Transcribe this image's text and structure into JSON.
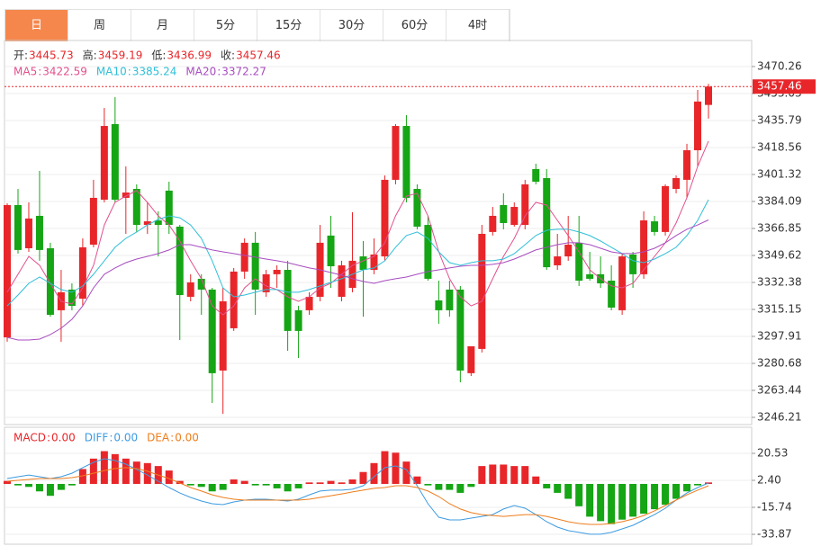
{
  "tabs": {
    "items": [
      "日",
      "周",
      "月",
      "5分",
      "15分",
      "30分",
      "60分",
      "4时"
    ],
    "active": 0
  },
  "chart_data": [
    {
      "type": "candlestick",
      "separator": ":",
      "ohlc_labels": [
        "开:",
        "高:",
        "低:",
        "收:"
      ],
      "up_color": "#e8262a",
      "down_color": "#15a515",
      "grid": true,
      "last_price_line": true,
      "ylim": [
        3241.6,
        3486.9
      ],
      "yticks": [
        3470.26,
        3453.03,
        3435.79,
        3418.56,
        3401.32,
        3384.09,
        3366.85,
        3349.62,
        3332.38,
        3315.15,
        3297.91,
        3280.68,
        3263.44,
        3246.21
      ],
      "open": [
        3297.3,
        3381.8,
        3354.2,
        3374.9,
        3354.2,
        3314.6,
        3327.8,
        3322.0,
        3356.5,
        3385.2,
        3433.5,
        3386.4,
        3392.1,
        3369.1,
        3372.0,
        3391.0,
        3368.0,
        3323.2,
        3334.7,
        3327.8,
        3276.1,
        3303.1,
        3339.3,
        3357.7,
        3326.1,
        3337.6,
        3340.4,
        3314.6,
        3314.6,
        3323.2,
        3362.3,
        3323.2,
        3328.9,
        3349.0,
        3340.4,
        3349.0,
        3397.9,
        3432.3,
        3392.1,
        3369.1,
        3320.9,
        3327.8,
        3327.8,
        3274.4,
        3289.9,
        3364.6,
        3381.8,
        3369.1,
        3369.1,
        3404.8,
        3399.0,
        3343.3,
        3349.0,
        3357.7,
        3337.6,
        3337.6,
        3333.5,
        3314.6,
        3350.2,
        3337.6,
        3371.4,
        3364.6,
        3392.1,
        3397.9,
        3416.8,
        3445.73
      ],
      "high": [
        3382.9,
        3392.1,
        3383.5,
        3403.6,
        3357.7,
        3340.4,
        3331.8,
        3360.5,
        3397.9,
        3443.8,
        3450.7,
        3406.5,
        3395.0,
        3383.5,
        3377.8,
        3396.7,
        3369.1,
        3337.6,
        3337.6,
        3328.9,
        3328.9,
        3341.6,
        3360.5,
        3364.6,
        3340.4,
        3343.3,
        3346.2,
        3317.4,
        3326.1,
        3369.1,
        3374.9,
        3346.2,
        3377.2,
        3358.8,
        3360.5,
        3400.7,
        3433.5,
        3439.2,
        3395.0,
        3374.9,
        3333.5,
        3333.5,
        3330.1,
        3291.6,
        3369.1,
        3380.6,
        3389.3,
        3383.5,
        3397.9,
        3408.2,
        3404.8,
        3363.4,
        3374.9,
        3374.9,
        3351.9,
        3349.0,
        3343.3,
        3350.8,
        3351.9,
        3377.8,
        3374.9,
        3395.0,
        3400.7,
        3420.9,
        3455.3,
        3459.19
      ],
      "low": [
        3294.5,
        3350.8,
        3351.9,
        3346.2,
        3310.5,
        3294.5,
        3314.6,
        3317.4,
        3354.8,
        3383.5,
        3383.5,
        3363.4,
        3364.6,
        3363.4,
        3349.0,
        3363.4,
        3295.6,
        3320.3,
        3311.7,
        3255.4,
        3248.5,
        3301.4,
        3334.7,
        3311.7,
        3323.2,
        3328.9,
        3288.7,
        3284.1,
        3311.7,
        3320.3,
        3328.9,
        3320.3,
        3326.1,
        3310.5,
        3337.6,
        3346.2,
        3395.0,
        3383.5,
        3366.3,
        3333.5,
        3306.0,
        3310.5,
        3268.6,
        3272.6,
        3287.6,
        3362.3,
        3366.3,
        3368.0,
        3366.3,
        3395.0,
        3340.4,
        3340.4,
        3346.2,
        3330.1,
        3333.5,
        3328.9,
        3314.6,
        3311.7,
        3328.9,
        3334.7,
        3362.3,
        3362.3,
        3389.3,
        3386.4,
        3406.5,
        3436.99
      ],
      "close": [
        3381.8,
        3353.1,
        3373.2,
        3353.1,
        3311.7,
        3326.1,
        3317.4,
        3354.8,
        3386.4,
        3432.3,
        3385.2,
        3389.8,
        3369.1,
        3371.4,
        3369.1,
        3369.1,
        3324.3,
        3332.4,
        3327.8,
        3274.4,
        3320.3,
        3339.3,
        3357.7,
        3327.8,
        3337.6,
        3340.4,
        3301.4,
        3301.4,
        3323.2,
        3357.7,
        3342.7,
        3343.3,
        3346.2,
        3340.4,
        3350.2,
        3397.9,
        3432.3,
        3386.4,
        3368.0,
        3334.7,
        3314.6,
        3314.6,
        3276.1,
        3291.6,
        3363.4,
        3374.9,
        3370.3,
        3380.6,
        3395.0,
        3396.7,
        3342.1,
        3349.0,
        3356.5,
        3333.5,
        3334.7,
        3331.8,
        3316.3,
        3349.0,
        3337.6,
        3372.0,
        3364.6,
        3393.9,
        3399.0,
        3416.8,
        3447.9,
        3457.46
      ],
      "series": [
        {
          "name": "MA5",
          "color": "#e2508e",
          "values": [
            3326.1,
            3337.6,
            3349.0,
            3343.3,
            3331.8,
            3320.3,
            3318.6,
            3328.9,
            3343.3,
            3369.1,
            3383.5,
            3387.5,
            3391.0,
            3383.5,
            3374.9,
            3369.1,
            3358.8,
            3346.2,
            3334.7,
            3317.4,
            3311.7,
            3317.4,
            3328.9,
            3334.7,
            3330.1,
            3327.8,
            3323.2,
            3320.3,
            3323.2,
            3328.9,
            3331.8,
            3337.6,
            3343.3,
            3346.2,
            3349.0,
            3357.7,
            3374.9,
            3387.5,
            3389.3,
            3374.9,
            3351.9,
            3334.7,
            3323.2,
            3317.4,
            3320.3,
            3334.7,
            3349.0,
            3360.5,
            3374.9,
            3383.5,
            3381.8,
            3372.0,
            3362.3,
            3351.9,
            3340.4,
            3334.7,
            3330.1,
            3328.9,
            3331.8,
            3340.4,
            3349.0,
            3357.7,
            3370.3,
            3386.4,
            3406.5,
            3422.59
          ]
        },
        {
          "name": "MA10",
          "color": "#2fbfd8",
          "values": [
            3317.4,
            3324.3,
            3331.8,
            3335.8,
            3331.8,
            3327.8,
            3326.1,
            3330.1,
            3337.6,
            3346.2,
            3354.8,
            3360.5,
            3364.6,
            3369.1,
            3372.6,
            3374.9,
            3373.7,
            3369.1,
            3360.5,
            3346.2,
            3328.9,
            3323.2,
            3324.3,
            3326.1,
            3327.8,
            3327.8,
            3326.1,
            3326.1,
            3327.8,
            3330.1,
            3332.4,
            3334.7,
            3337.6,
            3340.4,
            3341.6,
            3346.2,
            3354.8,
            3362.3,
            3364.6,
            3360.5,
            3351.9,
            3345.0,
            3343.3,
            3345.0,
            3346.2,
            3346.2,
            3347.3,
            3350.8,
            3356.5,
            3362.3,
            3365.7,
            3366.3,
            3366.3,
            3364.6,
            3362.3,
            3358.8,
            3354.8,
            3350.8,
            3346.2,
            3345.0,
            3347.3,
            3350.8,
            3354.8,
            3362.3,
            3372.0,
            3385.24
          ]
        },
        {
          "name": "MA20",
          "color": "#a84cc0",
          "values": [
            3297.3,
            3295.6,
            3295.6,
            3296.2,
            3299.1,
            3303.1,
            3308.8,
            3317.4,
            3328.9,
            3337.6,
            3341.6,
            3345.0,
            3347.3,
            3349.0,
            3350.8,
            3353.1,
            3356.5,
            3356.5,
            3354.8,
            3353.1,
            3351.9,
            3350.8,
            3349.6,
            3348.5,
            3347.3,
            3346.2,
            3345.0,
            3343.3,
            3341.6,
            3340.4,
            3338.7,
            3337.0,
            3334.7,
            3333.0,
            3331.8,
            3333.5,
            3334.7,
            3335.8,
            3337.6,
            3339.3,
            3340.4,
            3341.6,
            3342.7,
            3343.3,
            3343.3,
            3343.9,
            3345.0,
            3347.3,
            3350.2,
            3353.1,
            3354.8,
            3356.5,
            3357.7,
            3357.7,
            3356.5,
            3354.2,
            3351.9,
            3350.8,
            3350.8,
            3351.9,
            3354.2,
            3357.7,
            3362.3,
            3366.3,
            3369.1,
            3372.27
          ]
        }
      ]
    },
    {
      "type": "macd",
      "separator": ":",
      "up_color": "#e8262a",
      "down_color": "#15a515",
      "grid": true,
      "ylim": [
        -40.5,
        38.06
      ],
      "yticks": [
        20.53,
        {
          "value": 2.4,
          "label": "2.40"
        },
        -15.74,
        -33.87
      ],
      "series": [
        {
          "name": "MACD",
          "kind": "bar",
          "color": "#e8262a",
          "readout": "0.00",
          "values": [
            2,
            -1,
            -2,
            -5,
            -8,
            -4,
            -1,
            10,
            17,
            22,
            20,
            17,
            15,
            14,
            12,
            9,
            2,
            -1,
            -2,
            -5,
            -4,
            3,
            2,
            -1,
            -1,
            -3,
            -5,
            -3,
            1,
            1,
            2,
            1,
            3,
            8,
            14,
            22,
            21,
            15,
            5,
            -1,
            -4,
            -4,
            -6,
            -2,
            12,
            13,
            13,
            12,
            12,
            5,
            -3,
            -6,
            -10,
            -15,
            -22,
            -25,
            -27,
            -24,
            -22,
            -20,
            -17,
            -14,
            -10,
            -5,
            -1,
            1
          ]
        },
        {
          "name": "DIFF",
          "kind": "line",
          "color": "#3d9be0",
          "readout": "0.00",
          "values": [
            3.6,
            4.8,
            6.0,
            4.8,
            3.6,
            4.8,
            7.2,
            10.9,
            14.5,
            16.9,
            15.7,
            13.3,
            9.7,
            6.0,
            1.8,
            -2.4,
            -6.1,
            -9.1,
            -11.5,
            -13.3,
            -13.9,
            -12.1,
            -10.9,
            -10.3,
            -10.3,
            -10.9,
            -11.5,
            -10.3,
            -7.3,
            -4.8,
            -4.2,
            -4.2,
            -3.6,
            -1.2,
            4.8,
            10.9,
            12.1,
            9.7,
            -1.2,
            -13.3,
            -22.4,
            -24.2,
            -24.2,
            -23.0,
            -21.8,
            -20.6,
            -16.9,
            -14.5,
            -16.3,
            -20.6,
            -25.4,
            -29.0,
            -31.4,
            -32.6,
            -33.8,
            -33.8,
            -32.6,
            -30.2,
            -27.8,
            -24.2,
            -20.6,
            -16.3,
            -10.9,
            -6.1,
            -2.4,
            0.6
          ]
        },
        {
          "name": "DEA",
          "kind": "line",
          "color": "#ee7d1c",
          "readout": "0.00",
          "values": [
            1.8,
            2.4,
            3.0,
            3.6,
            3.6,
            3.6,
            4.2,
            5.4,
            7.2,
            9.0,
            10.3,
            10.9,
            10.3,
            8.5,
            6.0,
            3.6,
            0.6,
            -2.4,
            -4.8,
            -7.3,
            -9.1,
            -10.3,
            -10.9,
            -10.9,
            -10.9,
            -10.9,
            -10.9,
            -10.9,
            -10.3,
            -9.1,
            -7.9,
            -6.7,
            -5.4,
            -4.2,
            -3.0,
            -2.4,
            -1.2,
            -1.2,
            -2.4,
            -4.8,
            -8.5,
            -13.3,
            -16.9,
            -19.3,
            -20.6,
            -21.2,
            -21.8,
            -21.2,
            -20.6,
            -20.6,
            -21.8,
            -23.6,
            -25.4,
            -26.6,
            -27.2,
            -27.2,
            -26.6,
            -25.4,
            -23.6,
            -21.2,
            -18.1,
            -14.5,
            -10.9,
            -7.3,
            -4.2,
            -1.2
          ]
        }
      ]
    }
  ]
}
